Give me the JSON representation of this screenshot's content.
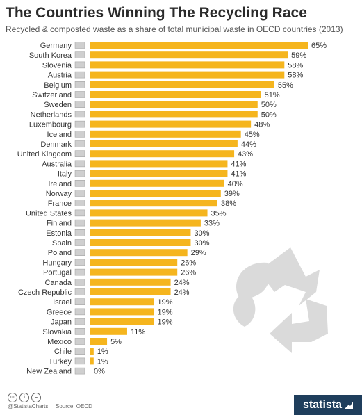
{
  "header": {
    "title": "The Countries Winning The Recycling Race",
    "subtitle": "Recycled & composted waste as a share of total municipal waste in OECD countries (2013)"
  },
  "footer": {
    "handle": "@StatistaCharts",
    "source": "Source: OECD",
    "brand": "statista"
  },
  "colors": {
    "bar": "#f5b51e",
    "text": "#333333",
    "decoration": "#d8d8d8"
  },
  "icons": [
    "cc-icon",
    "by-icon",
    "nd-icon",
    "recycling-icon",
    "statista-logo-icon"
  ],
  "chart_data": {
    "type": "bar",
    "orientation": "horizontal",
    "title": "The Countries Winning The Recycling Race",
    "subtitle": "Recycled & composted waste as a share of total municipal waste in OECD countries (2013)",
    "value_suffix": "%",
    "xlim": [
      0,
      65
    ],
    "grid": false,
    "categories": [
      "Germany",
      "South Korea",
      "Slovenia",
      "Austria",
      "Belgium",
      "Switzerland",
      "Sweden",
      "Netherlands",
      "Luxembourg",
      "Iceland",
      "Denmark",
      "United Kingdom",
      "Australia",
      "Italy",
      "Ireland",
      "Norway",
      "France",
      "United States",
      "Finland",
      "Estonia",
      "Spain",
      "Poland",
      "Hungary",
      "Portugal",
      "Canada",
      "Czech Republic",
      "Israel",
      "Greece",
      "Japan",
      "Slovakia",
      "Mexico",
      "Chile",
      "Turkey",
      "New Zealand"
    ],
    "values": [
      65,
      59,
      58,
      58,
      55,
      51,
      50,
      50,
      48,
      45,
      44,
      43,
      41,
      41,
      40,
      39,
      38,
      35,
      33,
      30,
      30,
      29,
      26,
      26,
      24,
      24,
      19,
      19,
      19,
      11,
      5,
      1,
      1,
      0
    ]
  }
}
